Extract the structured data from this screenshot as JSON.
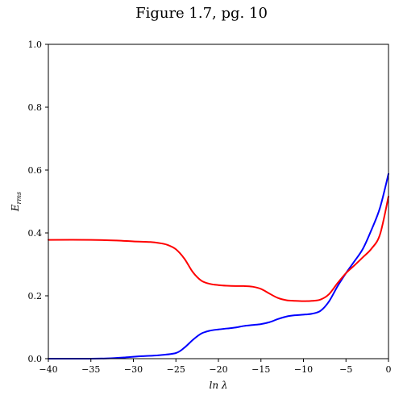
{
  "chart_data": {
    "type": "line",
    "title": "Figure 1.7, pg. 10",
    "xlabel": "ln λ",
    "ylabel": "E_rms",
    "ylabel_main": "E",
    "ylabel_sub": "rms",
    "xlim": [
      -40,
      0
    ],
    "ylim": [
      0,
      1.0
    ],
    "grid": false,
    "legend": "none",
    "x_ticks": [
      -40,
      -35,
      -30,
      -25,
      -20,
      -15,
      -10,
      -5,
      0
    ],
    "x_tick_labels": [
      "−40",
      "−35",
      "−30",
      "−25",
      "−20",
      "−15",
      "−10",
      "−5",
      "0"
    ],
    "y_ticks": [
      0.0,
      0.2,
      0.4,
      0.6,
      0.8,
      1.0
    ],
    "y_tick_labels": [
      "0.0",
      "0.2",
      "0.4",
      "0.6",
      "0.8",
      "1.0"
    ],
    "series": [
      {
        "name": "blue",
        "color": "#0000ff",
        "x": [
          -40,
          -35,
          -33,
          -31,
          -29,
          -27,
          -25,
          -24,
          -23,
          -22,
          -21,
          -20,
          -19,
          -18,
          -17,
          -16,
          -15,
          -14,
          -13,
          -12,
          -11,
          -10,
          -9,
          -8,
          -7,
          -6,
          -5,
          -4,
          -3,
          -2,
          -1,
          0
        ],
        "y": [
          0.0,
          0.0,
          0.001,
          0.004,
          0.008,
          0.011,
          0.018,
          0.035,
          0.06,
          0.08,
          0.089,
          0.093,
          0.096,
          0.099,
          0.104,
          0.107,
          0.11,
          0.116,
          0.126,
          0.134,
          0.138,
          0.14,
          0.143,
          0.152,
          0.182,
          0.23,
          0.272,
          0.31,
          0.35,
          0.41,
          0.48,
          0.588
        ]
      },
      {
        "name": "red",
        "color": "#ff0000",
        "x": [
          -40,
          -35,
          -32,
          -30,
          -28,
          -27,
          -26,
          -25,
          -24,
          -23,
          -22,
          -21,
          -20,
          -19,
          -18,
          -17,
          -16,
          -15,
          -14,
          -13,
          -12,
          -11,
          -10,
          -9,
          -8,
          -7,
          -6,
          -5,
          -4,
          -3,
          -2,
          -1,
          0
        ],
        "y": [
          0.378,
          0.378,
          0.376,
          0.373,
          0.371,
          0.368,
          0.362,
          0.348,
          0.318,
          0.275,
          0.248,
          0.238,
          0.234,
          0.232,
          0.231,
          0.231,
          0.229,
          0.222,
          0.207,
          0.193,
          0.186,
          0.184,
          0.183,
          0.184,
          0.188,
          0.205,
          0.24,
          0.272,
          0.297,
          0.323,
          0.35,
          0.395,
          0.516
        ]
      }
    ]
  }
}
